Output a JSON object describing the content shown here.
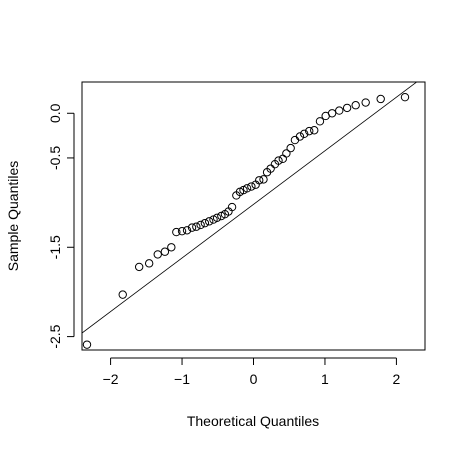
{
  "chart_data": {
    "type": "scatter",
    "title": "",
    "xlabel": "Theoretical Quantiles",
    "ylabel": "Sample Quantiles",
    "xlim": [
      -2.4,
      2.4
    ],
    "ylim": [
      -2.65,
      0.35
    ],
    "x_ticks": [
      -2,
      -1,
      0,
      1,
      2
    ],
    "x_tick_labels": [
      "−2",
      "−1",
      "0",
      "1",
      "2"
    ],
    "y_ticks": [
      -2.5,
      -1.5,
      -0.5,
      0.0
    ],
    "y_tick_labels": [
      "-2.5",
      "-1.5",
      "-0.5",
      "0.0"
    ],
    "grid": false,
    "legend": "none",
    "reference_line": {
      "x": [
        -2.4,
        2.4
      ],
      "y": [
        -2.46,
        0.42
      ]
    },
    "series": [
      {
        "marker": "open-circle",
        "color": "#000000",
        "points": [
          [
            -2.33,
            -2.59
          ],
          [
            -1.83,
            -2.03
          ],
          [
            -1.6,
            -1.72
          ],
          [
            -1.46,
            -1.68
          ],
          [
            -1.34,
            -1.58
          ],
          [
            -1.24,
            -1.55
          ],
          [
            -1.15,
            -1.5
          ],
          [
            -1.08,
            -1.33
          ],
          [
            -1.0,
            -1.32
          ],
          [
            -0.93,
            -1.31
          ],
          [
            -0.86,
            -1.28
          ],
          [
            -0.8,
            -1.27
          ],
          [
            -0.74,
            -1.25
          ],
          [
            -0.68,
            -1.23
          ],
          [
            -0.62,
            -1.21
          ],
          [
            -0.56,
            -1.19
          ],
          [
            -0.51,
            -1.17
          ],
          [
            -0.45,
            -1.15
          ],
          [
            -0.4,
            -1.13
          ],
          [
            -0.35,
            -1.1
          ],
          [
            -0.3,
            -1.05
          ],
          [
            -0.24,
            -0.92
          ],
          [
            -0.19,
            -0.88
          ],
          [
            -0.14,
            -0.86
          ],
          [
            -0.09,
            -0.84
          ],
          [
            -0.03,
            -0.82
          ],
          [
            0.03,
            -0.8
          ],
          [
            0.08,
            -0.75
          ],
          [
            0.14,
            -0.74
          ],
          [
            0.19,
            -0.66
          ],
          [
            0.24,
            -0.62
          ],
          [
            0.3,
            -0.57
          ],
          [
            0.35,
            -0.53
          ],
          [
            0.41,
            -0.51
          ],
          [
            0.46,
            -0.45
          ],
          [
            0.52,
            -0.39
          ],
          [
            0.58,
            -0.3
          ],
          [
            0.65,
            -0.26
          ],
          [
            0.71,
            -0.23
          ],
          [
            0.78,
            -0.2
          ],
          [
            0.85,
            -0.19
          ],
          [
            0.93,
            -0.09
          ],
          [
            1.01,
            -0.03
          ],
          [
            1.1,
            0.0
          ],
          [
            1.2,
            0.03
          ],
          [
            1.31,
            0.06
          ],
          [
            1.43,
            0.09
          ],
          [
            1.57,
            0.12
          ],
          [
            1.78,
            0.16
          ],
          [
            2.12,
            0.18
          ]
        ]
      }
    ]
  }
}
